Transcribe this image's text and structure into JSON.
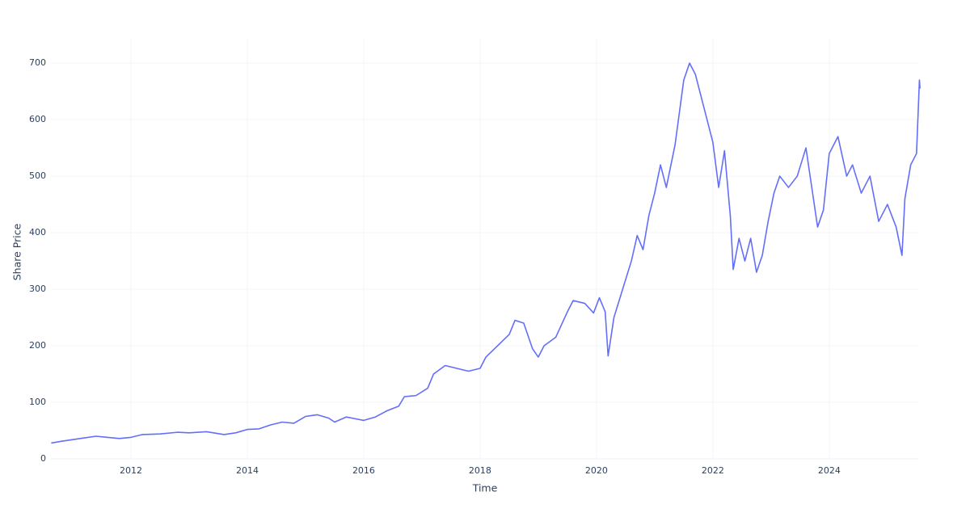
{
  "chart_data": {
    "type": "line",
    "xlabel": "Time",
    "ylabel": "Share Price",
    "x": [
      2010.63,
      2010.8,
      2011.0,
      2011.2,
      2011.4,
      2011.6,
      2011.8,
      2012.0,
      2012.2,
      2012.5,
      2012.8,
      2013.0,
      2013.3,
      2013.6,
      2013.8,
      2014.0,
      2014.2,
      2014.4,
      2014.6,
      2014.8,
      2015.0,
      2015.2,
      2015.4,
      2015.5,
      2015.7,
      2015.9,
      2016.0,
      2016.2,
      2016.4,
      2016.6,
      2016.7,
      2016.9,
      2017.1,
      2017.2,
      2017.4,
      2017.6,
      2017.8,
      2018.0,
      2018.1,
      2018.3,
      2018.5,
      2018.6,
      2018.75,
      2018.9,
      2019.0,
      2019.1,
      2019.3,
      2019.5,
      2019.6,
      2019.8,
      2019.95,
      2020.05,
      2020.15,
      2020.2,
      2020.3,
      2020.45,
      2020.6,
      2020.7,
      2020.8,
      2020.9,
      2021.0,
      2021.1,
      2021.2,
      2021.35,
      2021.5,
      2021.6,
      2021.7,
      2021.8,
      2021.9,
      2022.0,
      2022.1,
      2022.2,
      2022.3,
      2022.35,
      2022.45,
      2022.55,
      2022.65,
      2022.75,
      2022.85,
      2022.95,
      2023.05,
      2023.15,
      2023.3,
      2023.45,
      2023.6,
      2023.7,
      2023.8,
      2023.9,
      2024.0,
      2024.15,
      2024.3,
      2024.4,
      2024.55,
      2024.7,
      2024.85,
      2025.0,
      2025.15,
      2025.25,
      2025.3,
      2025.4,
      2025.5,
      2025.55,
      2025.56
    ],
    "series": [
      {
        "name": "Share Price",
        "color": "#636efa",
        "values": [
          28,
          31,
          34,
          37,
          40,
          38,
          36,
          38,
          43,
          44,
          47,
          46,
          48,
          43,
          46,
          52,
          53,
          60,
          65,
          63,
          75,
          78,
          72,
          65,
          74,
          70,
          68,
          74,
          85,
          93,
          110,
          112,
          125,
          150,
          165,
          160,
          155,
          160,
          180,
          200,
          220,
          245,
          240,
          195,
          180,
          200,
          215,
          260,
          280,
          275,
          258,
          285,
          260,
          182,
          250,
          300,
          350,
          395,
          370,
          430,
          470,
          520,
          480,
          555,
          670,
          700,
          680,
          640,
          600,
          560,
          480,
          545,
          430,
          335,
          390,
          350,
          390,
          330,
          360,
          420,
          470,
          500,
          480,
          500,
          550,
          480,
          410,
          440,
          540,
          570,
          500,
          520,
          470,
          500,
          420,
          450,
          410,
          360,
          460,
          520,
          540,
          670,
          655
        ]
      }
    ],
    "xlim": [
      2010.625,
      2025.53
    ],
    "xticks": [
      2012,
      2014,
      2016,
      2018,
      2020,
      2022,
      2024
    ],
    "ylim": [
      0,
      743
    ],
    "yticks": [
      0,
      100,
      200,
      300,
      400,
      500,
      600,
      700
    ],
    "grid": true
  }
}
